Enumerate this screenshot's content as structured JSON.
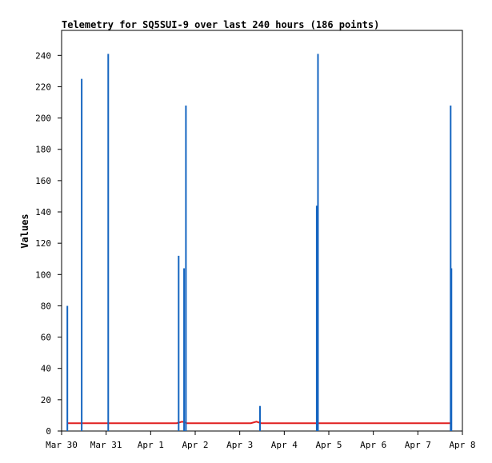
{
  "chart_data": {
    "type": "line",
    "title": "Telemetry for SQ5SUI-9 over last 240 hours (186 points)",
    "xlabel": "",
    "ylabel": "Values",
    "ylim": [
      0,
      256
    ],
    "yticks": [
      0,
      20,
      40,
      60,
      80,
      100,
      120,
      140,
      160,
      180,
      200,
      220,
      240
    ],
    "xlim": [
      "2024-03-30 00:00",
      "2024-04-08 00:00"
    ],
    "xticks": [
      "Mar 30",
      "Mar 31",
      "Apr 1",
      "Apr 2",
      "Apr 3",
      "Apr 4",
      "Apr 5",
      "Apr 6",
      "Apr 7",
      "Apr 8"
    ],
    "grid": false,
    "legend": "none",
    "colors": {
      "series1": "#1565c0",
      "series2": "#e02020"
    },
    "series": [
      {
        "style": "impulse",
        "color": "#1565c0",
        "points": [
          {
            "x": "2024-03-30 03:06",
            "y": 80
          },
          {
            "x": "2024-03-30 10:50",
            "y": 225
          },
          {
            "x": "2024-03-31 01:08",
            "y": 241
          },
          {
            "x": "2024-04-01 15:05",
            "y": 112
          },
          {
            "x": "2024-04-01 18:00",
            "y": 104
          },
          {
            "x": "2024-04-01 19:00",
            "y": 208
          },
          {
            "x": "2024-04-03 10:55",
            "y": 16
          },
          {
            "x": "2024-04-04 17:30",
            "y": 144
          },
          {
            "x": "2024-04-04 18:10",
            "y": 241
          },
          {
            "x": "2024-04-07 17:40",
            "y": 208
          },
          {
            "x": "2024-04-07 18:05",
            "y": 104
          }
        ]
      },
      {
        "style": "line",
        "color": "#e02020",
        "points": [
          {
            "x": "2024-03-30 03:06",
            "y": 5
          },
          {
            "x": "2024-04-01 14:00",
            "y": 5
          },
          {
            "x": "2024-04-01 17:00",
            "y": 6
          },
          {
            "x": "2024-04-01 19:30",
            "y": 5
          },
          {
            "x": "2024-04-03 06:00",
            "y": 5
          },
          {
            "x": "2024-04-03 09:00",
            "y": 6
          },
          {
            "x": "2024-04-03 11:30",
            "y": 5
          },
          {
            "x": "2024-04-07 18:05",
            "y": 5
          }
        ]
      }
    ]
  }
}
